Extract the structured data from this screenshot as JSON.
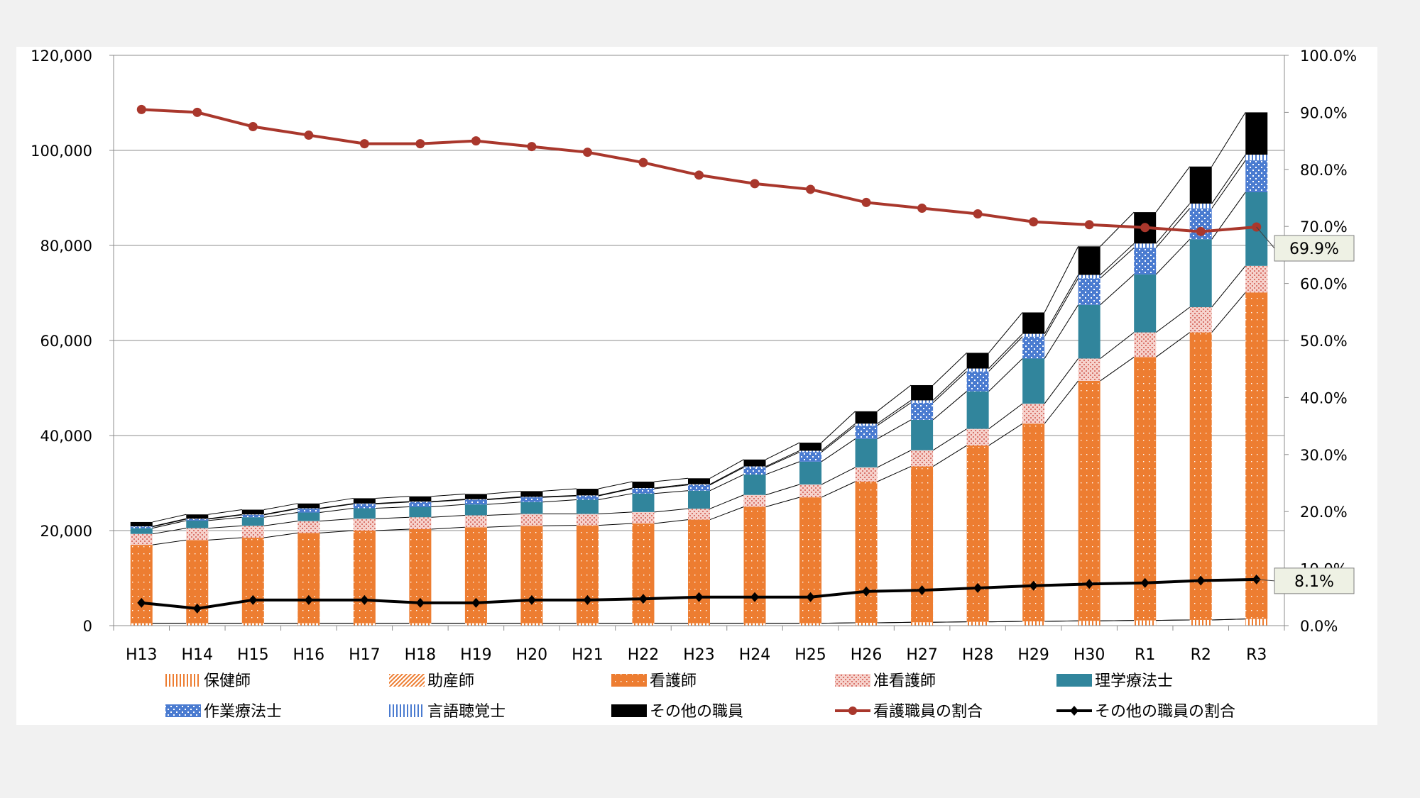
{
  "chart_data": {
    "type": "bar",
    "stacked": true,
    "categories": [
      "H13",
      "H14",
      "H15",
      "H16",
      "H17",
      "H18",
      "H19",
      "H20",
      "H21",
      "H22",
      "H23",
      "H24",
      "H25",
      "H26",
      "H27",
      "H28",
      "H29",
      "H30",
      "R1",
      "R2",
      "R3"
    ],
    "y_left": {
      "ylim": [
        0,
        120000
      ],
      "ticks": [
        "0",
        "20,000",
        "40,000",
        "60,000",
        "80,000",
        "100,000",
        "120,000"
      ]
    },
    "y_right": {
      "ylim": [
        0,
        100
      ],
      "ticks": [
        "0.0%",
        "10.0%",
        "20.0%",
        "30.0%",
        "40.0%",
        "50.0%",
        "60.0%",
        "70.0%",
        "80.0%",
        "90.0%",
        "100.0%"
      ]
    },
    "grid": true,
    "legend_position": "bottom",
    "series": [
      {
        "name": "保健師",
        "color": "#ed7d31",
        "pattern": "vlines",
        "values": [
          500,
          500,
          500,
          500,
          500,
          500,
          500,
          500,
          500,
          500,
          500,
          500,
          500,
          600,
          700,
          800,
          900,
          1000,
          1100,
          1200,
          1400
        ]
      },
      {
        "name": "助産師",
        "color": "#ed7d31",
        "pattern": "diag",
        "values": [
          0,
          0,
          0,
          0,
          0,
          0,
          0,
          0,
          0,
          0,
          0,
          0,
          0,
          0,
          0,
          0,
          0,
          0,
          0,
          0,
          0
        ]
      },
      {
        "name": "看護師",
        "color": "#ed7d31",
        "pattern": "dots",
        "values": [
          16500,
          17500,
          18000,
          19000,
          19500,
          19800,
          20200,
          20500,
          20600,
          21000,
          21800,
          24500,
          26500,
          29700,
          32800,
          37100,
          41600,
          50500,
          55400,
          60500,
          68700
        ]
      },
      {
        "name": "准看護師",
        "color": "#f4c6c0",
        "pattern": "pink",
        "values": [
          2300,
          2500,
          2500,
          2500,
          2500,
          2500,
          2500,
          2500,
          2400,
          2400,
          2300,
          2500,
          2700,
          3000,
          3400,
          3500,
          4200,
          4700,
          5200,
          5300,
          5600
        ]
      },
      {
        "name": "理学療法士",
        "color": "#31859c",
        "pattern": "solid",
        "values": [
          1200,
          1600,
          1800,
          1800,
          2200,
          2200,
          2300,
          2500,
          3000,
          3900,
          3800,
          4300,
          4800,
          6000,
          6400,
          7900,
          9500,
          11300,
          12200,
          14300,
          15500
        ]
      },
      {
        "name": "作業療法士",
        "color": "#4a7bd0",
        "pattern": "checker",
        "values": [
          300,
          300,
          500,
          800,
          900,
          1000,
          1000,
          1000,
          800,
          1000,
          1200,
          1500,
          2000,
          2800,
          3600,
          4200,
          4600,
          5600,
          5600,
          6500,
          6700
        ]
      },
      {
        "name": "言語聴覚士",
        "color": "#4a7bd0",
        "pattern": "vlines",
        "values": [
          100,
          100,
          100,
          100,
          100,
          100,
          100,
          100,
          100,
          150,
          150,
          200,
          300,
          400,
          500,
          600,
          600,
          700,
          900,
          1000,
          1200
        ]
      },
      {
        "name": "その他の職員",
        "color": "#000000",
        "pattern": "solid",
        "values": [
          900,
          900,
          1000,
          1000,
          1100,
          1100,
          1100,
          1200,
          1400,
          1350,
          1250,
          1450,
          1700,
          2600,
          3200,
          3300,
          4500,
          6000,
          6600,
          7800,
          8900
        ]
      },
      {
        "name": "看護職員の割合",
        "type": "line",
        "axis": "right",
        "color": "#a9372c",
        "marker": "circle",
        "values": [
          90.5,
          90.0,
          87.5,
          86.0,
          84.5,
          84.5,
          85.0,
          84.0,
          83.0,
          81.2,
          79.0,
          77.5,
          76.5,
          74.2,
          73.2,
          72.2,
          70.8,
          70.3,
          69.8,
          69.1,
          69.9
        ]
      },
      {
        "name": "その他の職員の割合",
        "type": "line",
        "axis": "right",
        "color": "#000000",
        "marker": "diamond",
        "values": [
          4.0,
          3.0,
          4.5,
          4.5,
          4.5,
          4.0,
          4.0,
          4.5,
          4.5,
          4.7,
          5.0,
          5.0,
          5.0,
          6.0,
          6.2,
          6.6,
          7.0,
          7.3,
          7.5,
          7.9,
          8.1
        ]
      }
    ],
    "annotations": [
      {
        "series": "看護職員の割合",
        "category": "R3",
        "text": "69.9%"
      },
      {
        "series": "その他の職員の割合",
        "category": "R3",
        "text": "8.1%"
      }
    ]
  }
}
